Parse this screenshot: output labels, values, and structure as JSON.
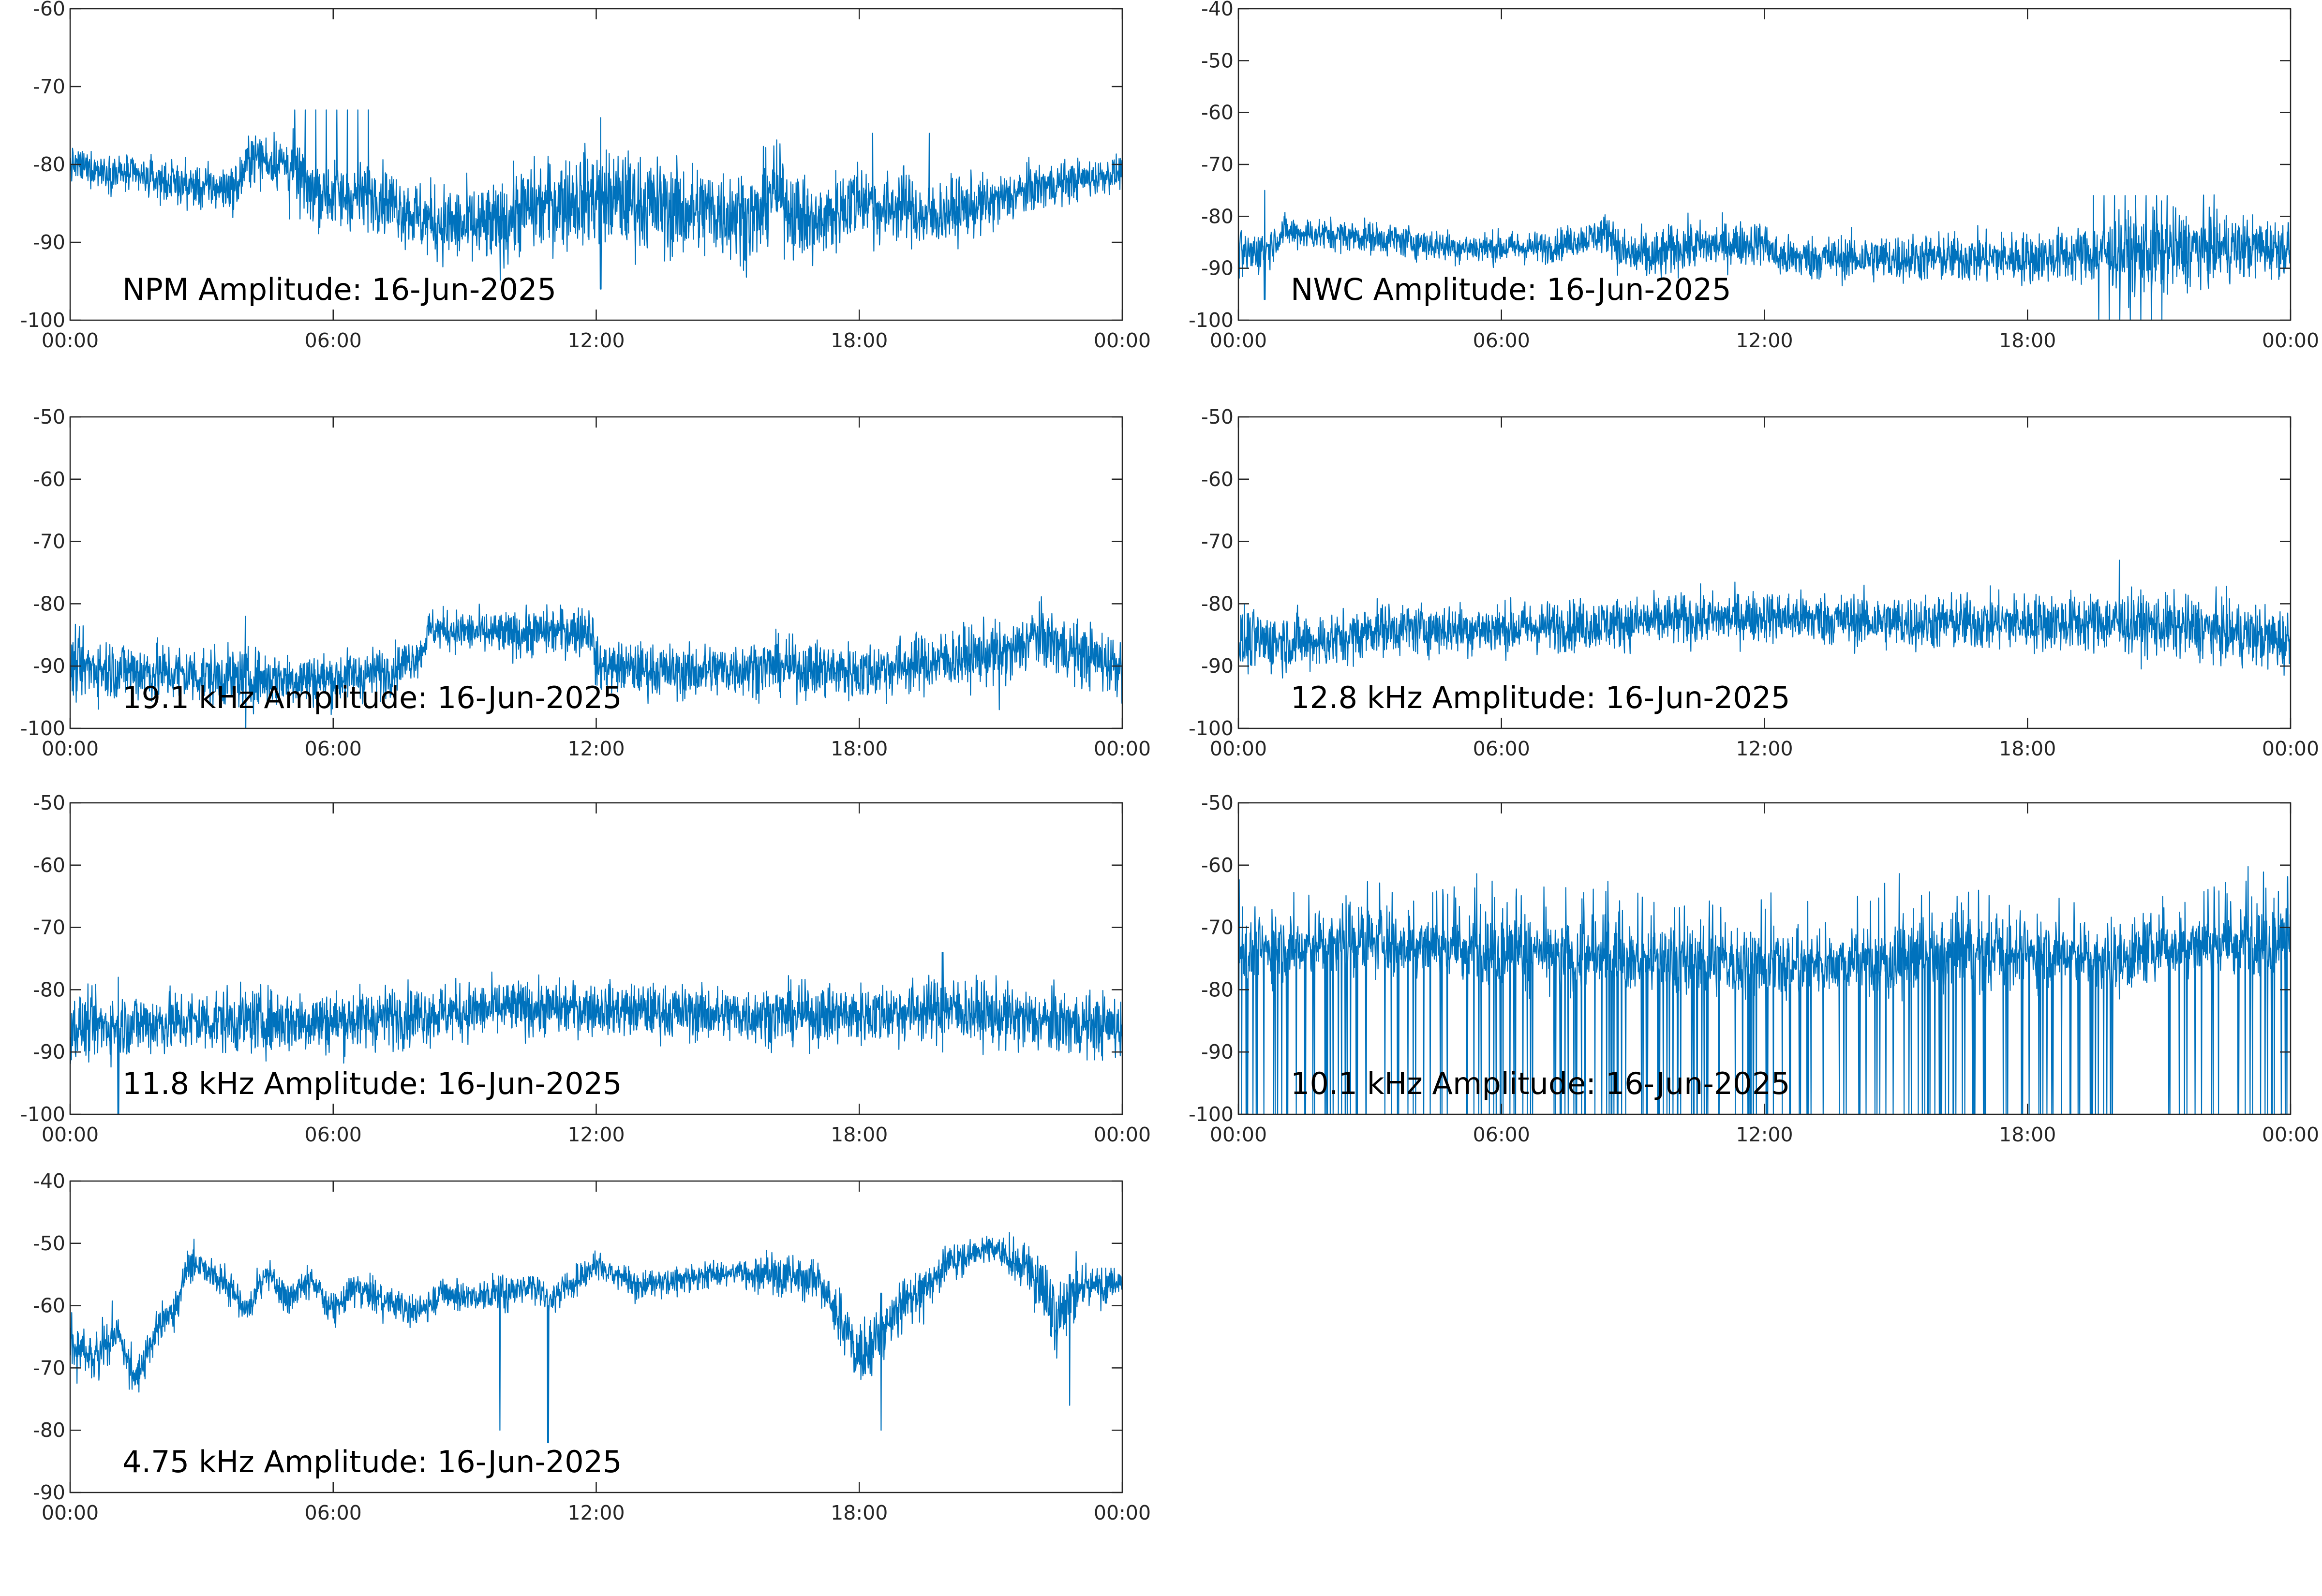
{
  "chart_data": [
    {
      "type": "line",
      "title": "NPM Amplitude: 16-Jun-2025",
      "x_tick_labels": [
        "00:00",
        "06:00",
        "12:00",
        "18:00",
        "00:00"
      ],
      "x": {
        "start": "00:00",
        "end": "24:00",
        "unit": "hours"
      },
      "ylim": [
        -100,
        -60
      ],
      "yticks": [
        -100,
        -90,
        -80,
        -70,
        -60
      ],
      "grid": false,
      "series": [
        {
          "color": "#0072BD",
          "style": "dense-noise",
          "mean_profile": [
            [
              0,
              -80
            ],
            [
              1,
              -81
            ],
            [
              2,
              -82
            ],
            [
              3,
              -83
            ],
            [
              3.8,
              -83
            ],
            [
              4.1,
              -79
            ],
            [
              5,
              -80
            ],
            [
              5.5,
              -83
            ],
            [
              6,
              -84
            ],
            [
              7,
              -84
            ],
            [
              7.4,
              -85
            ],
            [
              8,
              -87
            ],
            [
              9,
              -88
            ],
            [
              9.8,
              -88
            ],
            [
              10.2,
              -86
            ],
            [
              11,
              -85
            ],
            [
              12,
              -84
            ],
            [
              13,
              -85
            ],
            [
              14,
              -86
            ],
            [
              15,
              -86
            ],
            [
              15.7,
              -87
            ],
            [
              16,
              -83
            ],
            [
              16.5,
              -86
            ],
            [
              17,
              -88
            ],
            [
              17.5,
              -86
            ],
            [
              18,
              -84
            ],
            [
              18.5,
              -86
            ],
            [
              19,
              -85
            ],
            [
              19.5,
              -87
            ],
            [
              20,
              -86
            ],
            [
              21,
              -85
            ],
            [
              22,
              -83
            ],
            [
              23,
              -82
            ],
            [
              24,
              -81
            ]
          ],
          "noise_spread": [
            [
              0,
              2
            ],
            [
              4,
              3
            ],
            [
              5.5,
              4
            ],
            [
              7,
              4
            ],
            [
              9,
              5
            ],
            [
              12,
              6
            ],
            [
              15,
              6
            ],
            [
              20,
              4
            ],
            [
              24,
              2
            ]
          ],
          "events": [
            {
              "kind": "spike-burst",
              "from": 5,
              "to": 7,
              "top": -73,
              "bottom": -87
            },
            {
              "kind": "spike",
              "at": 12.1,
              "top": -74,
              "bottom": -96
            },
            {
              "kind": "spike",
              "at": 18.3,
              "top": -76,
              "bottom": -85
            },
            {
              "kind": "spike",
              "at": 19.6,
              "top": -76,
              "bottom": -85
            }
          ]
        }
      ]
    },
    {
      "type": "line",
      "title": "NWC Amplitude: 16-Jun-2025",
      "x_tick_labels": [
        "00:00",
        "06:00",
        "12:00",
        "18:00",
        "00:00"
      ],
      "x": {
        "start": "00:00",
        "end": "24:00",
        "unit": "hours"
      },
      "ylim": [
        -100,
        -40
      ],
      "yticks": [
        -100,
        -90,
        -80,
        -70,
        -60,
        -50,
        -40
      ],
      "grid": false,
      "series": [
        {
          "color": "#0072BD",
          "style": "dense-noise",
          "mean_profile": [
            [
              0,
              -88
            ],
            [
              0.7,
              -86
            ],
            [
              1,
              -83
            ],
            [
              3,
              -84
            ],
            [
              5,
              -86
            ],
            [
              7,
              -86
            ],
            [
              8.5,
              -83
            ],
            [
              8.7,
              -87
            ],
            [
              9.5,
              -88
            ],
            [
              10,
              -86
            ],
            [
              12,
              -85
            ],
            [
              12.3,
              -88
            ],
            [
              15,
              -88
            ],
            [
              18,
              -88
            ],
            [
              20,
              -87
            ],
            [
              21,
              -87
            ],
            [
              22,
              -86
            ],
            [
              24,
              -86
            ]
          ],
          "noise_spread": [
            [
              0,
              5
            ],
            [
              1,
              3
            ],
            [
              8,
              3
            ],
            [
              9,
              5
            ],
            [
              12,
              4
            ],
            [
              19,
              5
            ],
            [
              21,
              8
            ],
            [
              24,
              5
            ]
          ],
          "events": [
            {
              "kind": "spike-burst",
              "from": 19.5,
              "to": 21.3,
              "top": -76,
              "bottom": -100
            },
            {
              "kind": "spike",
              "at": 0.6,
              "top": -75,
              "bottom": -96
            }
          ]
        }
      ]
    },
    {
      "type": "line",
      "title": "19.1 kHz Amplitude: 16-Jun-2025",
      "x_tick_labels": [
        "00:00",
        "06:00",
        "12:00",
        "18:00",
        "00:00"
      ],
      "x": {
        "start": "00:00",
        "end": "24:00",
        "unit": "hours"
      },
      "ylim": [
        -100,
        -50
      ],
      "yticks": [
        -100,
        -90,
        -80,
        -70,
        -60,
        -50
      ],
      "grid": false,
      "series": [
        {
          "color": "#0072BD",
          "style": "dense-noise",
          "mean_profile": [
            [
              0,
              -90
            ],
            [
              2,
              -91
            ],
            [
              4,
              -92
            ],
            [
              6,
              -92
            ],
            [
              7.2,
              -91
            ],
            [
              8,
              -88
            ],
            [
              8.2,
              -84
            ],
            [
              10,
              -85
            ],
            [
              11.9,
              -84
            ],
            [
              12,
              -90
            ],
            [
              14,
              -91
            ],
            [
              16,
              -90
            ],
            [
              18,
              -91
            ],
            [
              19,
              -90
            ],
            [
              20,
              -89
            ],
            [
              21,
              -88
            ],
            [
              21.5,
              -88
            ],
            [
              22,
              -85
            ],
            [
              23,
              -88
            ],
            [
              24,
              -90
            ]
          ],
          "noise_spread": [
            [
              0,
              5
            ],
            [
              7,
              4
            ],
            [
              8,
              3
            ],
            [
              12,
              4
            ],
            [
              24,
              5
            ]
          ],
          "events": [
            {
              "kind": "spike",
              "at": 21.2,
              "top": -83,
              "bottom": -97
            },
            {
              "kind": "spike",
              "at": 4,
              "top": -82,
              "bottom": -100
            }
          ]
        }
      ]
    },
    {
      "type": "line",
      "title": "12.8 kHz Amplitude: 16-Jun-2025",
      "x_tick_labels": [
        "00:00",
        "06:00",
        "12:00",
        "18:00",
        "00:00"
      ],
      "x": {
        "start": "00:00",
        "end": "24:00",
        "unit": "hours"
      },
      "ylim": [
        -100,
        -50
      ],
      "yticks": [
        -100,
        -90,
        -80,
        -70,
        -60,
        -50
      ],
      "grid": false,
      "series": [
        {
          "color": "#0072BD",
          "style": "dense-noise",
          "mean_profile": [
            [
              0,
              -86
            ],
            [
              2,
              -86
            ],
            [
              2.8,
              -85
            ],
            [
              3,
              -84
            ],
            [
              6,
              -84
            ],
            [
              9,
              -83
            ],
            [
              12,
              -82
            ],
            [
              15,
              -83
            ],
            [
              18,
              -83
            ],
            [
              20,
              -83
            ],
            [
              22,
              -84
            ],
            [
              24,
              -86
            ]
          ],
          "noise_spread": [
            [
              0,
              5
            ],
            [
              3,
              4
            ],
            [
              12,
              4
            ],
            [
              24,
              5
            ]
          ],
          "events": [
            {
              "kind": "spike",
              "at": 20.1,
              "top": -73,
              "bottom": -86
            }
          ]
        }
      ]
    },
    {
      "type": "line",
      "title": "11.8 kHz Amplitude: 16-Jun-2025",
      "x_tick_labels": [
        "00:00",
        "06:00",
        "12:00",
        "18:00",
        "00:00"
      ],
      "x": {
        "start": "00:00",
        "end": "24:00",
        "unit": "hours"
      },
      "ylim": [
        -100,
        -50
      ],
      "yticks": [
        -100,
        -90,
        -80,
        -70,
        -60,
        -50
      ],
      "grid": false,
      "series": [
        {
          "color": "#0072BD",
          "style": "dense-noise",
          "mean_profile": [
            [
              0,
              -86
            ],
            [
              3,
              -85
            ],
            [
              6,
              -85
            ],
            [
              8,
              -84
            ],
            [
              10,
              -83
            ],
            [
              12,
              -83
            ],
            [
              15,
              -84
            ],
            [
              18,
              -84
            ],
            [
              20,
              -83
            ],
            [
              22,
              -85
            ],
            [
              24,
              -86
            ]
          ],
          "noise_spread": [
            [
              0,
              5
            ],
            [
              6,
              5
            ],
            [
              12,
              4
            ],
            [
              20,
              5
            ],
            [
              24,
              5
            ]
          ],
          "events": [
            {
              "kind": "spike",
              "at": 19.9,
              "top": -74,
              "bottom": -90
            },
            {
              "kind": "spike",
              "at": 1.1,
              "top": -78,
              "bottom": -100
            }
          ]
        }
      ]
    },
    {
      "type": "line",
      "title": "10.1 kHz Amplitude: 16-Jun-2025",
      "x_tick_labels": [
        "00:00",
        "06:00",
        "12:00",
        "18:00",
        "00:00"
      ],
      "x": {
        "start": "00:00",
        "end": "24:00",
        "unit": "hours"
      },
      "ylim": [
        -100,
        -50
      ],
      "yticks": [
        -100,
        -90,
        -80,
        -70,
        -60,
        -50
      ],
      "grid": false,
      "series": [
        {
          "color": "#0072BD",
          "style": "dropout-bursts",
          "mean_profile": [
            [
              0,
              -74
            ],
            [
              3,
              -72
            ],
            [
              8,
              -75
            ],
            [
              12,
              -76
            ],
            [
              16,
              -75
            ],
            [
              19,
              -74
            ],
            [
              20,
              -76
            ],
            [
              21,
              -73
            ],
            [
              24,
              -72
            ]
          ],
          "noise_spread": [
            [
              0,
              5
            ],
            [
              24,
              5
            ]
          ],
          "dropout_floor": -100,
          "dropout_free_window": [
            20,
            21.2
          ]
        }
      ]
    },
    {
      "type": "line",
      "title": "4.75 kHz Amplitude: 16-Jun-2025",
      "x_tick_labels": [
        "00:00",
        "06:00",
        "12:00",
        "18:00",
        "00:00"
      ],
      "x": {
        "start": "00:00",
        "end": "24:00",
        "unit": "hours"
      },
      "ylim": [
        -90,
        -40
      ],
      "yticks": [
        -90,
        -80,
        -70,
        -60,
        -50,
        -40
      ],
      "grid": false,
      "series": [
        {
          "color": "#0072BD",
          "style": "wandering",
          "mean_profile": [
            [
              0,
              -63
            ],
            [
              0.5,
              -68
            ],
            [
              1,
              -63
            ],
            [
              1.5,
              -70
            ],
            [
              2,
              -63
            ],
            [
              2.5,
              -58
            ],
            [
              2.7,
              -52
            ],
            [
              3.5,
              -55
            ],
            [
              4,
              -60
            ],
            [
              4.5,
              -54
            ],
            [
              5,
              -58
            ],
            [
              5.5,
              -55
            ],
            [
              6,
              -60
            ],
            [
              6.5,
              -56
            ],
            [
              7,
              -58
            ],
            [
              8,
              -60
            ],
            [
              8.5,
              -57
            ],
            [
              9,
              -58
            ],
            [
              10,
              -57
            ],
            [
              10.5,
              -56
            ],
            [
              11,
              -58
            ],
            [
              11.5,
              -55
            ],
            [
              12,
              -53
            ],
            [
              13,
              -56
            ],
            [
              14,
              -55
            ],
            [
              15,
              -54
            ],
            [
              16,
              -54
            ],
            [
              17,
              -54
            ],
            [
              17.5,
              -60
            ],
            [
              18,
              -66
            ],
            [
              18.5,
              -64
            ],
            [
              19,
              -58
            ],
            [
              19.5,
              -56
            ],
            [
              20,
              -52
            ],
            [
              21,
              -50
            ],
            [
              22,
              -53
            ],
            [
              22.5,
              -60
            ],
            [
              23,
              -56
            ],
            [
              24,
              -55
            ]
          ],
          "noise_spread": [
            [
              0,
              7
            ],
            [
              3,
              4
            ],
            [
              10,
              4
            ],
            [
              15,
              3
            ],
            [
              18,
              8
            ],
            [
              21,
              3
            ],
            [
              22.5,
              10
            ],
            [
              24,
              3
            ]
          ],
          "events": [
            {
              "kind": "spike",
              "at": 10.9,
              "top": -60,
              "bottom": -82
            },
            {
              "kind": "spike",
              "at": 9.8,
              "top": -60,
              "bottom": -80
            },
            {
              "kind": "spike",
              "at": 18.5,
              "top": -58,
              "bottom": -80
            },
            {
              "kind": "spike",
              "at": 22.8,
              "top": -55,
              "bottom": -76
            }
          ]
        }
      ]
    }
  ]
}
